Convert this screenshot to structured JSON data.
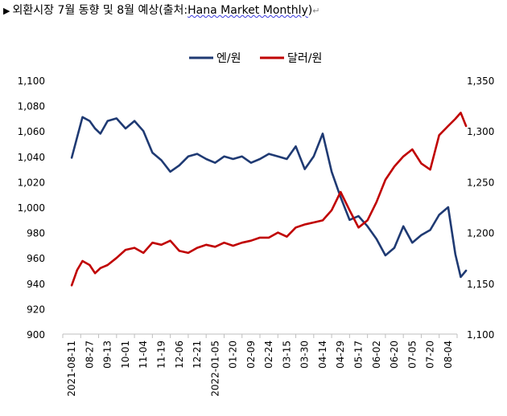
{
  "header": {
    "marker": "▶",
    "title": "외환시장 7월 동향 및 8월 예상(출처:",
    "source": "Hana Market Monthly",
    "close": ")",
    "return_mark": "↵"
  },
  "chart_data": {
    "type": "line",
    "x_tick_labels": [
      "2021-08-11",
      "08-27",
      "09-13",
      "10-01",
      "11-04",
      "11-19",
      "12-06",
      "12-21",
      "2022-01-05",
      "01-20",
      "02-09",
      "02-24",
      "03-15",
      "03-30",
      "04-14",
      "04-29",
      "05-17",
      "06-02",
      "06-20",
      "07-05",
      "07-20",
      "08-04"
    ],
    "left_axis": {
      "ylim": [
        900,
        1100
      ],
      "ticks": [
        "900",
        "920",
        "940",
        "960",
        "980",
        "1,000",
        "1,020",
        "1,040",
        "1,060",
        "1,080",
        "1,100"
      ]
    },
    "right_axis": {
      "ylim": [
        1100,
        1350
      ],
      "ticks": [
        "1,100",
        "1,150",
        "1,200",
        "1,250",
        "1,300",
        "1,350"
      ]
    },
    "legend_position": "top",
    "series": [
      {
        "name": "엔/원",
        "axis": "left",
        "color": "#1f3a73",
        "x": [
          0,
          0.3,
          0.6,
          1,
          1.3,
          1.6,
          2,
          2.5,
          3,
          3.5,
          4,
          4.5,
          5,
          5.5,
          6,
          6.5,
          7,
          7.5,
          8,
          8.5,
          9,
          9.5,
          10,
          10.5,
          11,
          11.5,
          12,
          12.5,
          13,
          13.5,
          14,
          14.5,
          15,
          15.5,
          16,
          16.5,
          17,
          17.5,
          18,
          18.5,
          19,
          19.5,
          20,
          20.5,
          21,
          21.4,
          21.7,
          22
        ],
        "values": [
          1039,
          1055,
          1071,
          1068,
          1062,
          1058,
          1068,
          1070,
          1062,
          1068,
          1060,
          1043,
          1037,
          1028,
          1033,
          1040,
          1042,
          1038,
          1035,
          1040,
          1038,
          1040,
          1035,
          1038,
          1042,
          1040,
          1038,
          1048,
          1030,
          1040,
          1058,
          1028,
          1008,
          990,
          993,
          985,
          975,
          962,
          968,
          985,
          972,
          978,
          982,
          994,
          1000,
          963,
          945,
          950
        ]
      },
      {
        "name": "달러/원",
        "axis": "right",
        "color": "#c00000",
        "x": [
          0,
          0.3,
          0.6,
          1,
          1.3,
          1.6,
          2,
          2.5,
          3,
          3.5,
          4,
          4.5,
          5,
          5.5,
          6,
          6.5,
          7,
          7.5,
          8,
          8.5,
          9,
          9.5,
          10,
          10.5,
          11,
          11.5,
          12,
          12.5,
          13,
          13.5,
          14,
          14.5,
          15,
          15.5,
          16,
          16.5,
          17,
          17.5,
          18,
          18.5,
          19,
          19.5,
          20,
          20.5,
          21,
          21.4,
          21.7,
          22
        ],
        "values": [
          1148,
          1163,
          1172,
          1168,
          1160,
          1165,
          1168,
          1175,
          1183,
          1185,
          1180,
          1190,
          1188,
          1192,
          1182,
          1180,
          1185,
          1188,
          1186,
          1190,
          1187,
          1190,
          1192,
          1195,
          1195,
          1200,
          1196,
          1205,
          1208,
          1210,
          1212,
          1222,
          1240,
          1222,
          1205,
          1212,
          1230,
          1252,
          1265,
          1275,
          1282,
          1268,
          1262,
          1296,
          1305,
          1312,
          1318,
          1305
        ]
      }
    ]
  }
}
